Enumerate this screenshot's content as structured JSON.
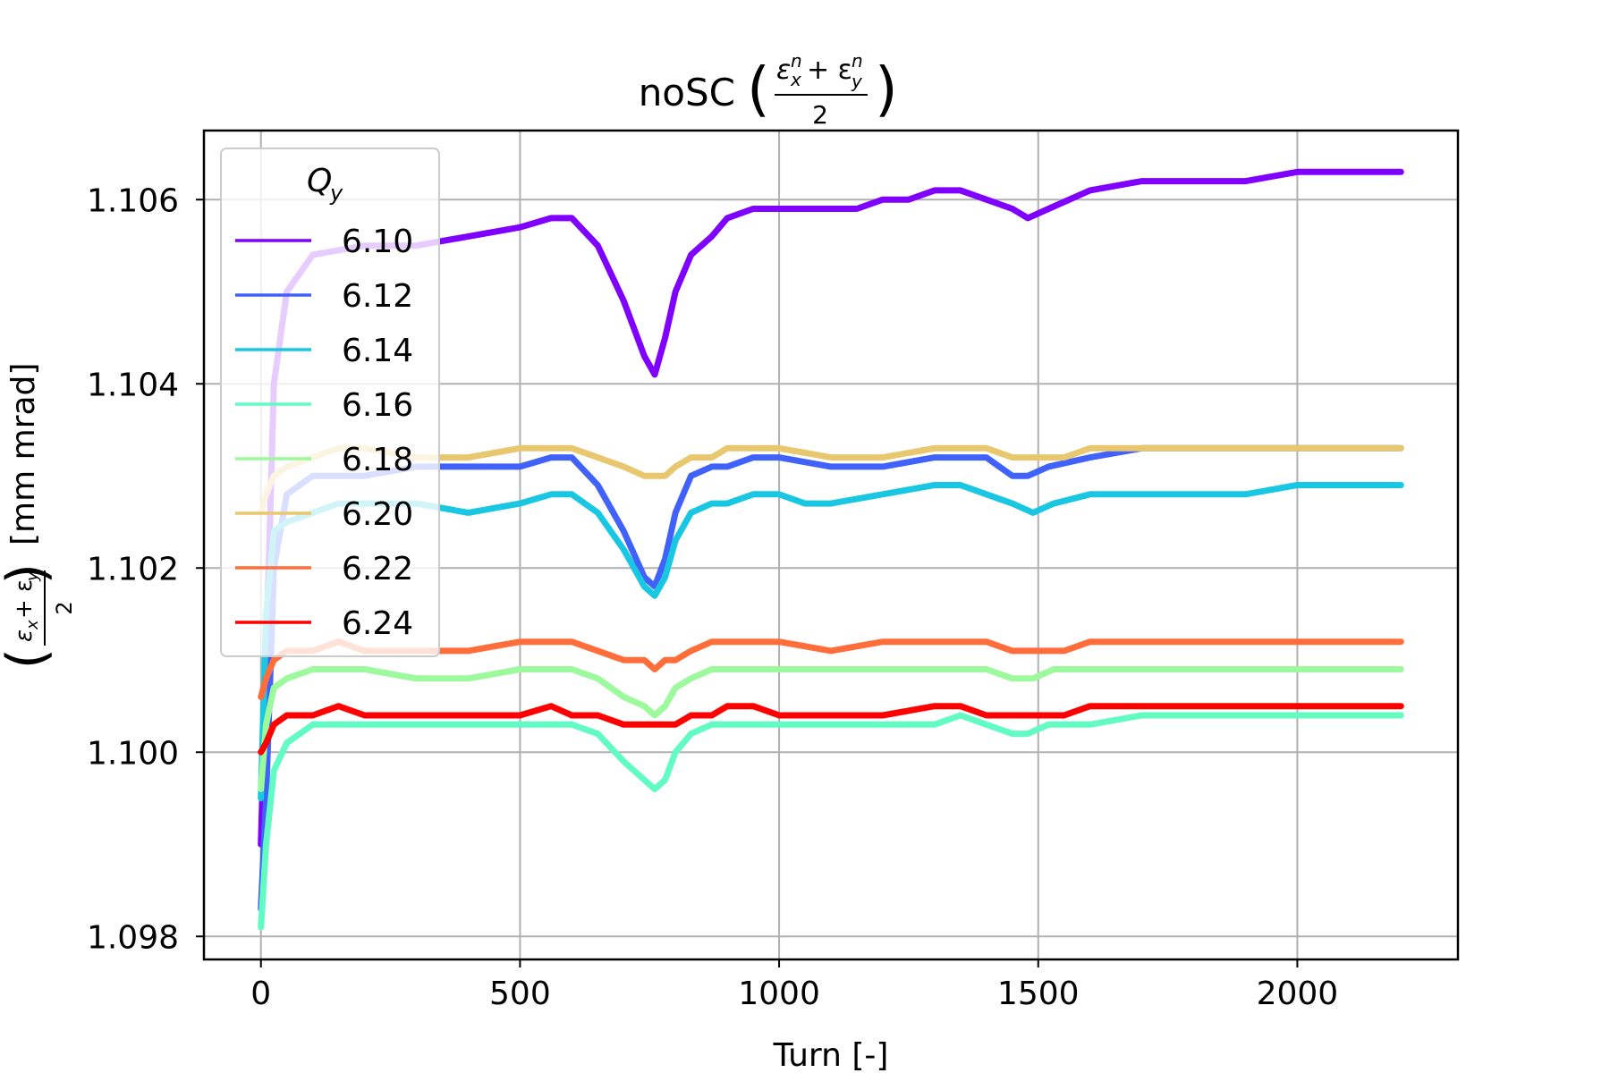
{
  "chart_data": {
    "type": "line",
    "title": "noSC",
    "title_math": {
      "open": "(",
      "numerator": "ε",
      "sup1": "n",
      "sub1": "x",
      "plus": "+ ε",
      "sup2": "n",
      "sub2": "y",
      "denominator": "2",
      "close": ")"
    },
    "xlabel": "Turn [-]",
    "ylabel": "[mm mrad]",
    "ylabel_math": {
      "open": "(",
      "numerator": "ε",
      "sub1": "x",
      "plus": "+ ε",
      "sub2": "y",
      "denominator": "2",
      "close": ")"
    },
    "xlim": [
      -110,
      2310
    ],
    "ylim": [
      1.09775,
      1.10675
    ],
    "xticks": [
      {
        "value": 0,
        "label": "0"
      },
      {
        "value": 500,
        "label": "500"
      },
      {
        "value": 1000,
        "label": "1000"
      },
      {
        "value": 1500,
        "label": "1500"
      },
      {
        "value": 2000,
        "label": "2000"
      }
    ],
    "yticks": [
      {
        "value": 1.098,
        "label": "1.098"
      },
      {
        "value": 1.1,
        "label": "1.100"
      },
      {
        "value": 1.102,
        "label": "1.102"
      },
      {
        "value": 1.104,
        "label": "1.104"
      },
      {
        "value": 1.106,
        "label": "1.106"
      }
    ],
    "grid": true,
    "legend": {
      "title": "Q",
      "title_sub": "y",
      "position": "upper-left"
    },
    "series": [
      {
        "name": "6.10",
        "color": "#8000ff",
        "x": [
          0,
          10,
          25,
          50,
          100,
          200,
          300,
          400,
          500,
          560,
          600,
          650,
          700,
          740,
          760,
          780,
          800,
          830,
          870,
          900,
          950,
          1000,
          1050,
          1100,
          1150,
          1200,
          1250,
          1300,
          1350,
          1400,
          1450,
          1480,
          1520,
          1600,
          1700,
          1800,
          1900,
          2000,
          2100,
          2150,
          2200
        ],
        "y": [
          1.099,
          1.101,
          1.104,
          1.105,
          1.1054,
          1.1055,
          1.1055,
          1.1056,
          1.1057,
          1.1058,
          1.1058,
          1.1055,
          1.1049,
          1.1043,
          1.1041,
          1.1045,
          1.105,
          1.1054,
          1.1056,
          1.1058,
          1.1059,
          1.1059,
          1.1059,
          1.1059,
          1.1059,
          1.106,
          1.106,
          1.1061,
          1.1061,
          1.106,
          1.1059,
          1.1058,
          1.1059,
          1.1061,
          1.1062,
          1.1062,
          1.1062,
          1.1063,
          1.1063,
          1.1063,
          1.1063
        ]
      },
      {
        "name": "6.12",
        "color": "#4062fa",
        "x": [
          0,
          10,
          25,
          50,
          100,
          200,
          300,
          400,
          500,
          560,
          600,
          650,
          700,
          740,
          760,
          780,
          800,
          830,
          870,
          900,
          950,
          1000,
          1100,
          1200,
          1300,
          1350,
          1400,
          1450,
          1480,
          1520,
          1600,
          1700,
          1800,
          1900,
          2000,
          2100,
          2200
        ],
        "y": [
          1.0983,
          1.0995,
          1.102,
          1.1028,
          1.103,
          1.103,
          1.1031,
          1.1031,
          1.1031,
          1.1032,
          1.1032,
          1.1029,
          1.1024,
          1.1019,
          1.1018,
          1.1021,
          1.1026,
          1.103,
          1.1031,
          1.1031,
          1.1032,
          1.1032,
          1.1031,
          1.1031,
          1.1032,
          1.1032,
          1.1032,
          1.103,
          1.103,
          1.1031,
          1.1032,
          1.1033,
          1.1033,
          1.1033,
          1.1033,
          1.1033,
          1.1033
        ]
      },
      {
        "name": "6.14",
        "color": "#1ac7e2",
        "x": [
          0,
          10,
          25,
          50,
          100,
          150,
          200,
          300,
          400,
          500,
          560,
          600,
          650,
          700,
          740,
          760,
          780,
          800,
          830,
          870,
          900,
          950,
          1000,
          1050,
          1100,
          1200,
          1300,
          1350,
          1400,
          1450,
          1490,
          1530,
          1600,
          1700,
          1800,
          1900,
          2000,
          2100,
          2200
        ],
        "y": [
          1.0995,
          1.1015,
          1.1024,
          1.1025,
          1.1026,
          1.1027,
          1.1027,
          1.1027,
          1.1026,
          1.1027,
          1.1028,
          1.1028,
          1.1026,
          1.1022,
          1.1018,
          1.1017,
          1.1019,
          1.1023,
          1.1026,
          1.1027,
          1.1027,
          1.1028,
          1.1028,
          1.1027,
          1.1027,
          1.1028,
          1.1029,
          1.1029,
          1.1028,
          1.1027,
          1.1026,
          1.1027,
          1.1028,
          1.1028,
          1.1028,
          1.1028,
          1.1029,
          1.1029,
          1.1029
        ]
      },
      {
        "name": "6.16",
        "color": "#62fbc4",
        "x": [
          0,
          10,
          25,
          50,
          100,
          150,
          200,
          300,
          400,
          500,
          560,
          600,
          650,
          700,
          740,
          760,
          780,
          800,
          830,
          870,
          900,
          950,
          1000,
          1100,
          1200,
          1300,
          1350,
          1400,
          1450,
          1480,
          1520,
          1600,
          1700,
          1800,
          1900,
          2000,
          2100,
          2200
        ],
        "y": [
          1.0981,
          1.099,
          1.0998,
          1.1001,
          1.1003,
          1.1003,
          1.1003,
          1.1003,
          1.1003,
          1.1003,
          1.1003,
          1.1003,
          1.1002,
          1.0999,
          1.0997,
          1.0996,
          1.0997,
          1.1,
          1.1002,
          1.1003,
          1.1003,
          1.1003,
          1.1003,
          1.1003,
          1.1003,
          1.1003,
          1.1004,
          1.1003,
          1.1002,
          1.1002,
          1.1003,
          1.1003,
          1.1004,
          1.1004,
          1.1004,
          1.1004,
          1.1004,
          1.1004
        ]
      },
      {
        "name": "6.18",
        "color": "#9cfa9c",
        "x": [
          0,
          10,
          25,
          50,
          100,
          150,
          200,
          300,
          400,
          500,
          560,
          600,
          650,
          700,
          740,
          760,
          780,
          800,
          830,
          870,
          900,
          950,
          1000,
          1100,
          1200,
          1300,
          1350,
          1400,
          1450,
          1490,
          1530,
          1600,
          1700,
          1800,
          1900,
          2000,
          2100,
          2200
        ],
        "y": [
          1.0996,
          1.1003,
          1.1007,
          1.1008,
          1.1009,
          1.1009,
          1.1009,
          1.1008,
          1.1008,
          1.1009,
          1.1009,
          1.1009,
          1.1008,
          1.1006,
          1.1005,
          1.1004,
          1.1005,
          1.1007,
          1.1008,
          1.1009,
          1.1009,
          1.1009,
          1.1009,
          1.1009,
          1.1009,
          1.1009,
          1.1009,
          1.1009,
          1.1008,
          1.1008,
          1.1009,
          1.1009,
          1.1009,
          1.1009,
          1.1009,
          1.1009,
          1.1009,
          1.1009
        ]
      },
      {
        "name": "6.20",
        "color": "#e8c76f",
        "x": [
          0,
          10,
          25,
          50,
          100,
          150,
          200,
          300,
          400,
          500,
          560,
          600,
          650,
          700,
          740,
          760,
          780,
          800,
          830,
          870,
          900,
          950,
          1000,
          1100,
          1200,
          1300,
          1350,
          1400,
          1450,
          1500,
          1550,
          1600,
          1700,
          1800,
          1900,
          2000,
          2100,
          2200
        ],
        "y": [
          1.1026,
          1.1028,
          1.103,
          1.1031,
          1.1032,
          1.1033,
          1.1033,
          1.1032,
          1.1032,
          1.1033,
          1.1033,
          1.1033,
          1.1032,
          1.1031,
          1.103,
          1.103,
          1.103,
          1.1031,
          1.1032,
          1.1032,
          1.1033,
          1.1033,
          1.1033,
          1.1032,
          1.1032,
          1.1033,
          1.1033,
          1.1033,
          1.1032,
          1.1032,
          1.1032,
          1.1033,
          1.1033,
          1.1033,
          1.1033,
          1.1033,
          1.1033,
          1.1033
        ]
      },
      {
        "name": "6.22",
        "color": "#ff6e3a",
        "x": [
          0,
          10,
          25,
          50,
          100,
          150,
          200,
          300,
          400,
          500,
          560,
          600,
          650,
          700,
          740,
          760,
          780,
          800,
          830,
          870,
          900,
          950,
          1000,
          1100,
          1200,
          1300,
          1350,
          1400,
          1450,
          1500,
          1550,
          1600,
          1700,
          1800,
          1900,
          2000,
          2100,
          2200
        ],
        "y": [
          1.1006,
          1.1008,
          1.101,
          1.1011,
          1.1011,
          1.1012,
          1.1011,
          1.1011,
          1.1011,
          1.1012,
          1.1012,
          1.1012,
          1.1011,
          1.101,
          1.101,
          1.1009,
          1.101,
          1.101,
          1.1011,
          1.1012,
          1.1012,
          1.1012,
          1.1012,
          1.1011,
          1.1012,
          1.1012,
          1.1012,
          1.1012,
          1.1011,
          1.1011,
          1.1011,
          1.1012,
          1.1012,
          1.1012,
          1.1012,
          1.1012,
          1.1012,
          1.1012
        ]
      },
      {
        "name": "6.24",
        "color": "#ff0000",
        "x": [
          0,
          10,
          25,
          50,
          100,
          150,
          200,
          300,
          400,
          500,
          560,
          600,
          650,
          700,
          740,
          760,
          780,
          800,
          830,
          870,
          900,
          950,
          1000,
          1100,
          1200,
          1300,
          1350,
          1400,
          1450,
          1500,
          1550,
          1600,
          1700,
          1800,
          1900,
          2000,
          2100,
          2200
        ],
        "y": [
          1.1,
          1.1001,
          1.1003,
          1.1004,
          1.1004,
          1.1005,
          1.1004,
          1.1004,
          1.1004,
          1.1004,
          1.1005,
          1.1004,
          1.1004,
          1.1003,
          1.1003,
          1.1003,
          1.1003,
          1.1003,
          1.1004,
          1.1004,
          1.1005,
          1.1005,
          1.1004,
          1.1004,
          1.1004,
          1.1005,
          1.1005,
          1.1004,
          1.1004,
          1.1004,
          1.1004,
          1.1005,
          1.1005,
          1.1005,
          1.1005,
          1.1005,
          1.1005,
          1.1005
        ]
      }
    ]
  }
}
